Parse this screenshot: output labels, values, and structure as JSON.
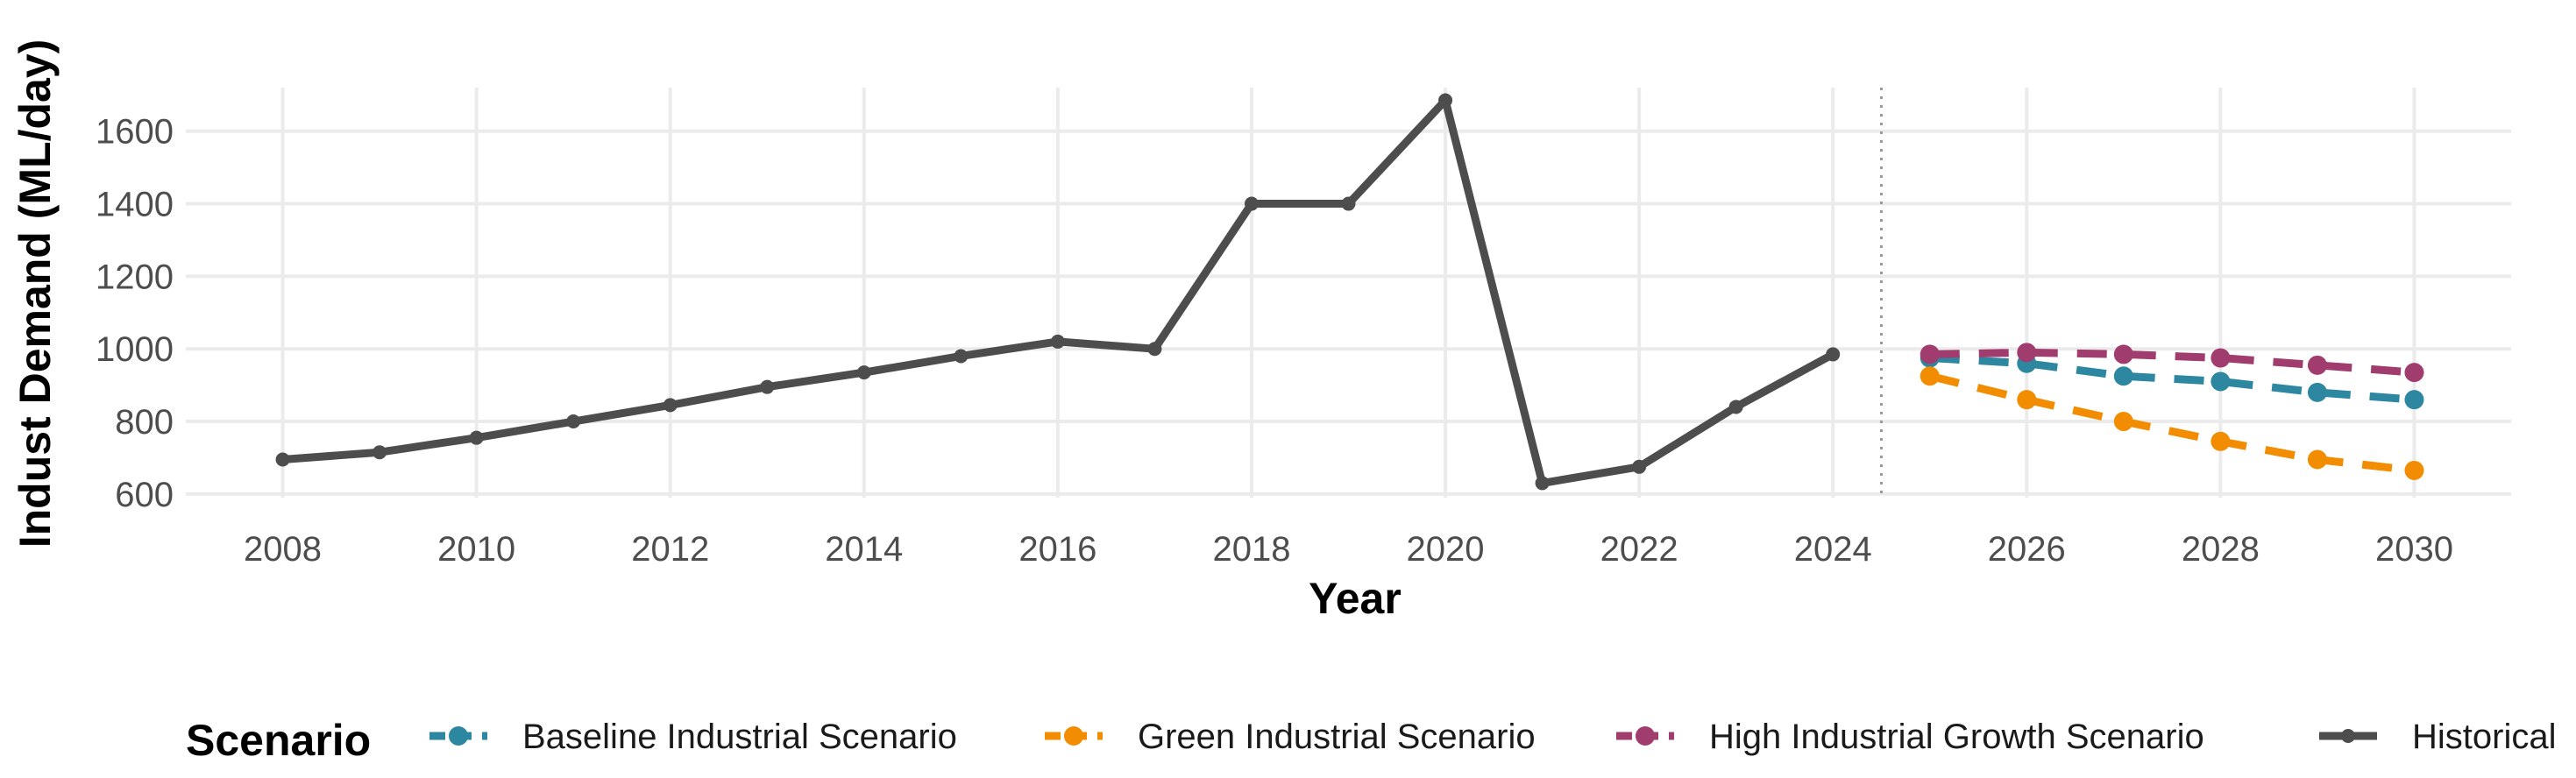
{
  "chart_data": {
    "type": "line",
    "title": "",
    "xlabel": "Year",
    "ylabel": "Indust Demand (ML/day)",
    "xlim": [
      2007.0,
      2031.0
    ],
    "ylim": [
      590,
      1720
    ],
    "grid": true,
    "x_ticks": [
      2008,
      2010,
      2012,
      2014,
      2016,
      2018,
      2020,
      2022,
      2024,
      2026,
      2028,
      2030
    ],
    "y_ticks": [
      600,
      800,
      1000,
      1200,
      1400,
      1600
    ],
    "divider_x": 2024.5,
    "legend": {
      "title": "Scenario",
      "placement": "bottom"
    },
    "series": [
      {
        "name": "Baseline Industrial Scenario",
        "color": "#2e87a0",
        "style": "dashed",
        "x": [
          2025,
          2026,
          2027,
          2028,
          2029,
          2030
        ],
        "values": [
          975,
          960,
          925,
          910,
          880,
          860
        ]
      },
      {
        "name": "Green Industrial Scenario",
        "color": "#f28c00",
        "style": "dashed",
        "x": [
          2025,
          2026,
          2027,
          2028,
          2029,
          2030
        ],
        "values": [
          925,
          860,
          800,
          745,
          695,
          665
        ]
      },
      {
        "name": "High Industrial Growth Scenario",
        "color": "#a03d6e",
        "style": "dashed",
        "x": [
          2025,
          2026,
          2027,
          2028,
          2029,
          2030
        ],
        "values": [
          985,
          990,
          985,
          975,
          955,
          935
        ]
      },
      {
        "name": "Historical",
        "color": "#4d4d4d",
        "style": "solid",
        "x": [
          2008,
          2009,
          2010,
          2011,
          2012,
          2013,
          2014,
          2015,
          2016,
          2017,
          2018,
          2019,
          2020,
          2021,
          2022,
          2023,
          2024
        ],
        "values": [
          695,
          715,
          755,
          800,
          845,
          895,
          935,
          980,
          1020,
          1000,
          1400,
          1400,
          1685,
          630,
          675,
          840,
          985
        ]
      }
    ]
  }
}
